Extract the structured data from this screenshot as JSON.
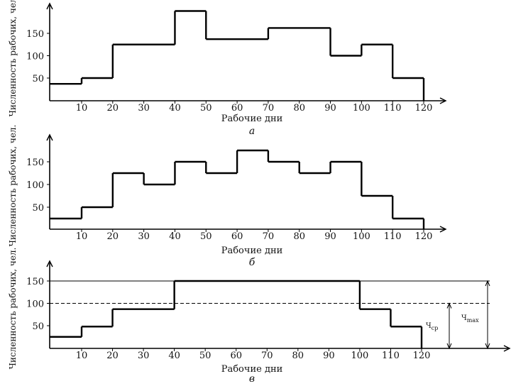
{
  "colors": {
    "line": "#000000",
    "background": "#ffffff"
  },
  "chart_data": [
    {
      "type": "line",
      "step": true,
      "panel_label": "а",
      "xlabel": "Рабочие дни",
      "ylabel": "Численность рабочих, чел.",
      "xlim": [
        0,
        125
      ],
      "ylim": [
        0,
        200
      ],
      "xticks": [
        10,
        20,
        30,
        40,
        50,
        60,
        70,
        80,
        90,
        100,
        110,
        120
      ],
      "yticks": [
        50,
        100,
        150
      ],
      "steps": [
        {
          "x0": 0,
          "x1": 10,
          "y": 37
        },
        {
          "x0": 10,
          "x1": 20,
          "y": 50
        },
        {
          "x0": 20,
          "x1": 40,
          "y": 125
        },
        {
          "x0": 40,
          "x1": 50,
          "y": 200
        },
        {
          "x0": 50,
          "x1": 70,
          "y": 137
        },
        {
          "x0": 70,
          "x1": 90,
          "y": 162
        },
        {
          "x0": 90,
          "x1": 100,
          "y": 100
        },
        {
          "x0": 100,
          "x1": 110,
          "y": 125
        },
        {
          "x0": 110,
          "x1": 120,
          "y": 50
        }
      ]
    },
    {
      "type": "line",
      "step": true,
      "panel_label": "б",
      "xlabel": "Рабочие дни",
      "ylabel": "Численность рабочих, чел.",
      "xlim": [
        0,
        125
      ],
      "ylim": [
        0,
        190
      ],
      "xticks": [
        10,
        20,
        30,
        40,
        50,
        60,
        70,
        80,
        90,
        100,
        110,
        120
      ],
      "yticks": [
        50,
        100,
        150
      ],
      "steps": [
        {
          "x0": 0,
          "x1": 10,
          "y": 25
        },
        {
          "x0": 10,
          "x1": 20,
          "y": 50
        },
        {
          "x0": 20,
          "x1": 30,
          "y": 125
        },
        {
          "x0": 30,
          "x1": 40,
          "y": 100
        },
        {
          "x0": 40,
          "x1": 50,
          "y": 150
        },
        {
          "x0": 50,
          "x1": 60,
          "y": 125
        },
        {
          "x0": 60,
          "x1": 70,
          "y": 175
        },
        {
          "x0": 70,
          "x1": 80,
          "y": 150
        },
        {
          "x0": 80,
          "x1": 90,
          "y": 125
        },
        {
          "x0": 90,
          "x1": 100,
          "y": 150
        },
        {
          "x0": 100,
          "x1": 110,
          "y": 75
        },
        {
          "x0": 110,
          "x1": 120,
          "y": 25
        }
      ]
    },
    {
      "type": "line",
      "step": true,
      "panel_label": "в",
      "xlabel": "Рабочие дни",
      "ylabel": "Численность рабочих, чел.",
      "xlim": [
        0,
        145
      ],
      "ylim": [
        0,
        185
      ],
      "xticks": [
        10,
        20,
        30,
        40,
        50,
        60,
        70,
        80,
        90,
        100,
        110,
        120
      ],
      "yticks": [
        50,
        100,
        150
      ],
      "steps": [
        {
          "x0": 0,
          "x1": 10,
          "y": 25
        },
        {
          "x0": 10,
          "x1": 20,
          "y": 48
        },
        {
          "x0": 20,
          "x1": 40,
          "y": 87
        },
        {
          "x0": 40,
          "x1": 100,
          "y": 150
        },
        {
          "x0": 100,
          "x1": 110,
          "y": 87
        },
        {
          "x0": 110,
          "x1": 120,
          "y": 48
        }
      ],
      "reference_lines": [
        {
          "y": 100,
          "style": "dashed"
        },
        {
          "y": 150,
          "style": "solid"
        }
      ],
      "annotations": [
        {
          "label": "Ч",
          "sub": "ср",
          "from": 0,
          "to": 100
        },
        {
          "label": "Ч",
          "sub": "max",
          "from": 0,
          "to": 150
        }
      ]
    }
  ]
}
